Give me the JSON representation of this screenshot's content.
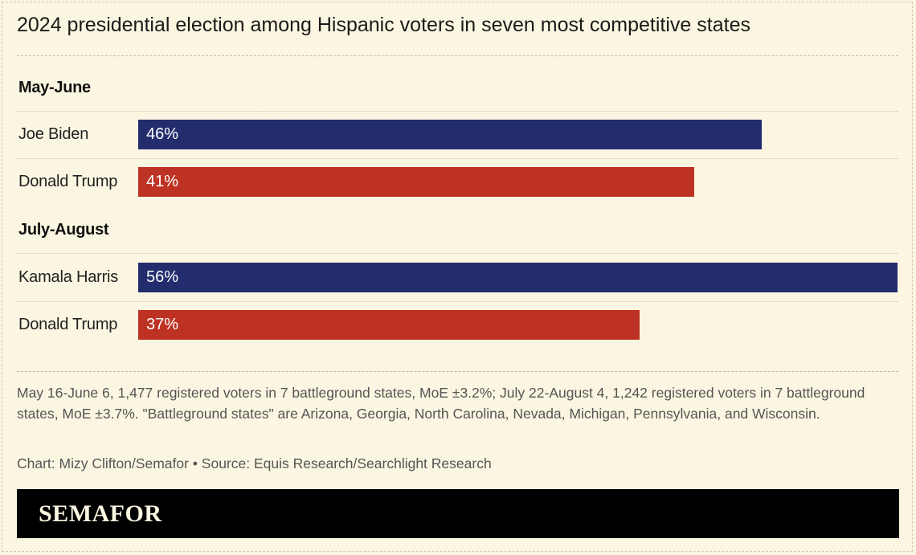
{
  "chart_data": {
    "type": "bar",
    "orientation": "horizontal",
    "title": "2024 presidential election among Hispanic voters in seven most competitive states",
    "xlim": [
      0,
      56
    ],
    "groups": [
      {
        "label": "May-June",
        "bars": [
          {
            "name": "Joe Biden",
            "value": 46,
            "value_label": "46%",
            "color": "#232c6c"
          },
          {
            "name": "Donald Trump",
            "value": 41,
            "value_label": "41%",
            "color": "#bd3222"
          }
        ]
      },
      {
        "label": "July-August",
        "bars": [
          {
            "name": "Kamala Harris",
            "value": 56,
            "value_label": "56%",
            "color": "#232c6c"
          },
          {
            "name": "Donald Trump",
            "value": 37,
            "value_label": "37%",
            "color": "#bd3222"
          }
        ]
      }
    ],
    "notes": "May 16-June 6, 1,477 registered voters in 7 battleground states, MoE ±3.2%; July 22-August 4, 1,242 registered voters in 7 battleground states, MoE ±3.7%. \"Battleground states\" are Arizona, Georgia, North Carolina, Nevada, Michigan, Pennsylvania, and Wisconsin.",
    "credit": "Chart: Mizy Clifton/Semafor • Source: Equis Research/Searchlight Research"
  },
  "footer": {
    "logo_text": "SEMAFOR"
  }
}
